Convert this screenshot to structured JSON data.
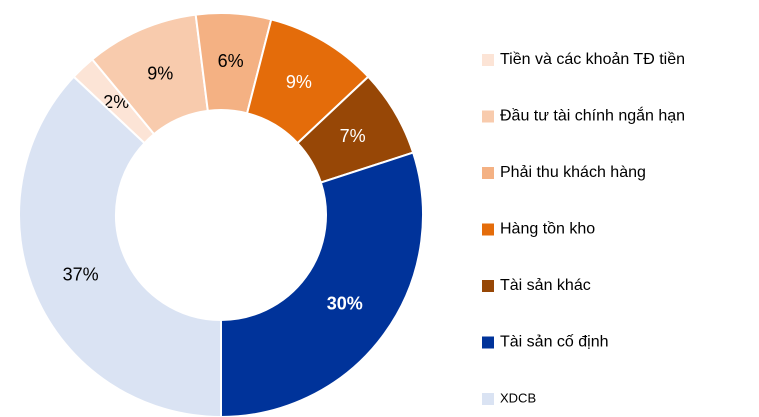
{
  "chart_data": {
    "type": "donut",
    "categories": [
      "Tiền và các khoản TĐ tiền",
      "Đầu tư tài chính ngắn hạn",
      "Phải thu khách hàng",
      "Hàng tồn kho",
      "Tài sản khác",
      "Tài sản cố định",
      "XDCB"
    ],
    "values": [
      2,
      9,
      6,
      9,
      7,
      30,
      37
    ],
    "value_labels": [
      "2%",
      "9%",
      "6%",
      "9%",
      "7%",
      "30%",
      "37%"
    ],
    "colors": [
      "#fce4d6",
      "#f8cbad",
      "#f4b183",
      "#e46c0a",
      "#974706",
      "#00339a",
      "#dae3f3"
    ],
    "legend": "right"
  }
}
